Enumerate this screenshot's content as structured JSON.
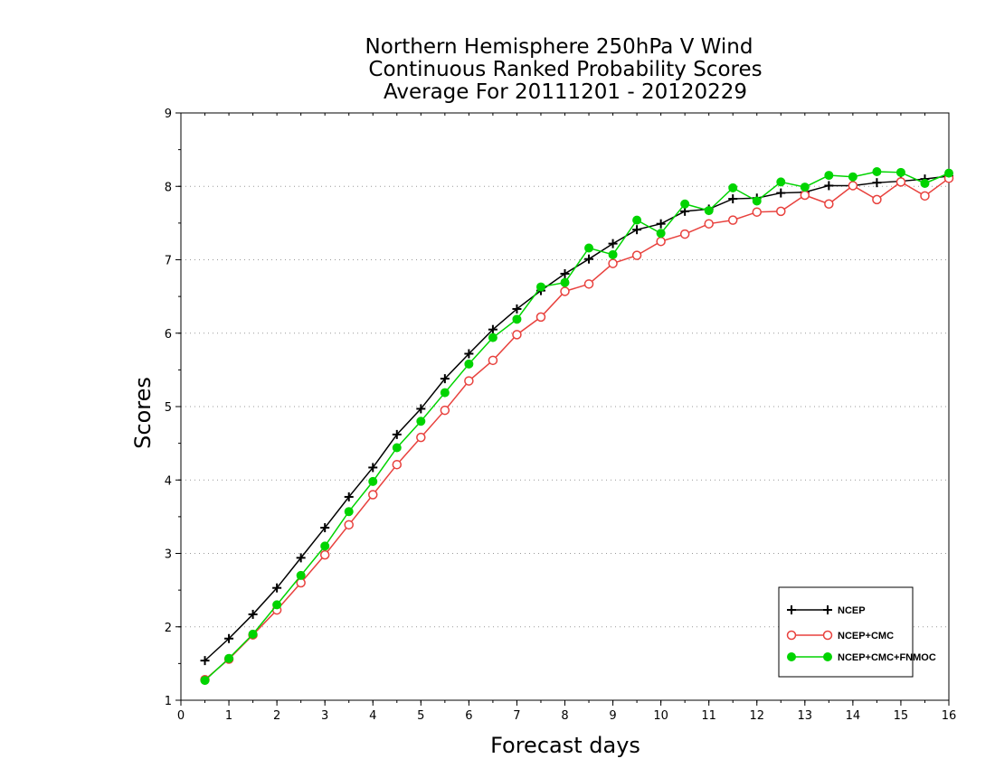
{
  "chart_data": {
    "type": "line",
    "title_lines": [
      "Northern Hemisphere 250hPa V Wind",
      "Continuous Ranked Probability Scores",
      "Average For 20111201 - 20120229"
    ],
    "xlabel": "Forecast days",
    "ylabel": "Scores",
    "xlim": [
      0,
      16
    ],
    "ylim": [
      1,
      9
    ],
    "xticks": [
      0,
      1,
      2,
      3,
      4,
      5,
      6,
      7,
      8,
      9,
      10,
      11,
      12,
      13,
      14,
      15,
      16
    ],
    "yticks": [
      1,
      2,
      3,
      4,
      5,
      6,
      7,
      8,
      9
    ],
    "grid": "horizontal-dotted",
    "legend_position": "bottom-right",
    "x": [
      0.5,
      1,
      1.5,
      2,
      2.5,
      3,
      3.5,
      4,
      4.5,
      5,
      5.5,
      6,
      6.5,
      7,
      7.5,
      8,
      8.5,
      9,
      9.5,
      10,
      10.5,
      11,
      11.5,
      12,
      12.5,
      13,
      13.5,
      14,
      14.5,
      15,
      15.5,
      16
    ],
    "series": [
      {
        "name": "NCEP",
        "color": "#000000",
        "marker": "plus",
        "values": [
          1.54,
          1.84,
          2.17,
          2.53,
          2.94,
          3.35,
          3.77,
          4.17,
          4.62,
          4.97,
          5.38,
          5.72,
          6.05,
          6.33,
          6.58,
          6.81,
          7.01,
          7.22,
          7.41,
          7.49,
          7.66,
          7.69,
          7.83,
          7.84,
          7.91,
          7.92,
          8.01,
          8.01,
          8.05,
          8.07,
          8.1,
          8.14
        ]
      },
      {
        "name": "NCEP+CMC",
        "color": "#e8413d",
        "marker": "open-circle",
        "values": [
          1.28,
          1.56,
          1.89,
          2.23,
          2.6,
          2.98,
          3.39,
          3.8,
          4.21,
          4.58,
          4.95,
          5.35,
          5.63,
          5.98,
          6.22,
          6.57,
          6.67,
          6.95,
          7.06,
          7.25,
          7.35,
          7.49,
          7.54,
          7.65,
          7.66,
          7.88,
          7.76,
          8.01,
          7.82,
          8.06,
          7.87,
          8.11
        ]
      },
      {
        "name": "NCEP+CMC+FNMOC",
        "color": "#00d400",
        "marker": "filled-circle",
        "values": [
          1.27,
          1.57,
          1.9,
          2.3,
          2.7,
          3.1,
          3.57,
          3.98,
          4.44,
          4.8,
          5.19,
          5.58,
          5.94,
          6.19,
          6.63,
          6.69,
          7.16,
          7.07,
          7.54,
          7.36,
          7.76,
          7.67,
          7.98,
          7.8,
          8.06,
          7.99,
          8.15,
          8.13,
          8.2,
          8.19,
          8.04,
          8.18
        ]
      }
    ]
  }
}
